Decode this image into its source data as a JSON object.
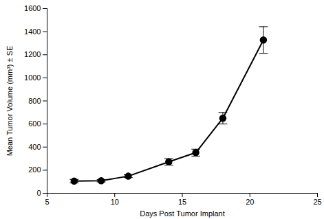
{
  "chart_data": {
    "type": "line",
    "x_label": "Days Post Tumor Implant",
    "y_label": "Mean Tumor Volume (mm³) ± SE",
    "x": [
      7,
      9,
      11,
      14,
      16,
      18,
      21
    ],
    "values": [
      105,
      108,
      148,
      272,
      352,
      650,
      1328
    ],
    "error": [
      15,
      10,
      12,
      28,
      30,
      50,
      115
    ],
    "color": "#000000",
    "marker": "circle",
    "xlim": [
      5,
      25
    ],
    "xticks": [
      5,
      10,
      15,
      20,
      25
    ],
    "ylim": [
      0,
      1600
    ],
    "yticks": [
      0,
      200,
      400,
      600,
      800,
      1000,
      1200,
      1400,
      1600
    ],
    "grid": false
  }
}
